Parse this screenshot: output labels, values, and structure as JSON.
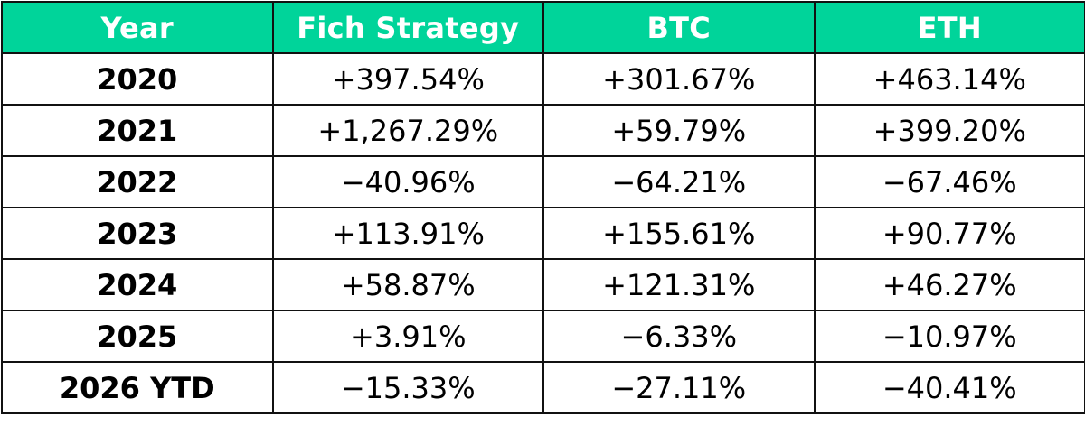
{
  "colors": {
    "header_bg": "#00d49a",
    "header_text": "#ffffff",
    "grid": "#111111",
    "body_bg": "#ffffff",
    "body_text": "#000000"
  },
  "chart_data": {
    "type": "table",
    "columns": [
      "Year",
      "Fich Strategy",
      "BTC",
      "ETH"
    ],
    "rows": [
      [
        "2020",
        "+397.54%",
        "+301.67%",
        "+463.14%"
      ],
      [
        "2021",
        "+1,267.29%",
        "+59.79%",
        "+399.20%"
      ],
      [
        "2022",
        "−40.96%",
        "−64.21%",
        "−67.46%"
      ],
      [
        "2023",
        "+113.91%",
        "+155.61%",
        "+90.77%"
      ],
      [
        "2024",
        "+58.87%",
        "+121.31%",
        "+46.27%"
      ],
      [
        "2025",
        "+3.91%",
        "−6.33%",
        "−10.97%"
      ],
      [
        "2026 YTD",
        "−15.33%",
        "−27.11%",
        "−40.41%"
      ]
    ],
    "values": {
      "Fich Strategy": [
        397.54,
        1267.29,
        -40.96,
        113.91,
        58.87,
        3.91,
        -15.33
      ],
      "BTC": [
        301.67,
        59.79,
        -64.21,
        155.61,
        121.31,
        -6.33,
        -27.11
      ],
      "ETH": [
        463.14,
        399.2,
        -67.46,
        90.77,
        46.27,
        -10.97,
        -40.41
      ]
    }
  }
}
